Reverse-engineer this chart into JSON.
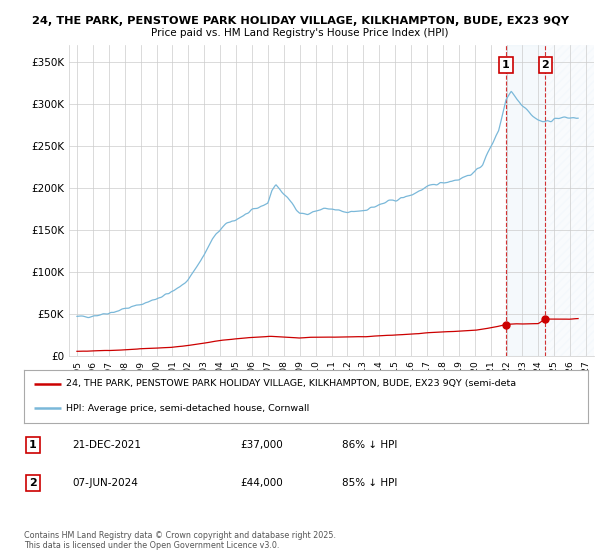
{
  "title_line1": "24, THE PARK, PENSTOWE PARK HOLIDAY VILLAGE, KILKHAMPTON, BUDE, EX23 9QY",
  "title_line2": "Price paid vs. HM Land Registry's House Price Index (HPI)",
  "background_color": "#ffffff",
  "grid_color": "#cccccc",
  "hpi_color": "#7ab8d9",
  "price_color": "#cc0000",
  "shade_color": "#daeaf7",
  "sale1_date_num": 2021.97,
  "sale2_date_num": 2024.44,
  "sale1_price": 37000,
  "sale2_price": 44000,
  "legend_line1": "24, THE PARK, PENSTOWE PARK HOLIDAY VILLAGE, KILKHAMPTON, BUDE, EX23 9QY (semi-deta",
  "legend_line2": "HPI: Average price, semi-detached house, Cornwall",
  "annotation1_date": "21-DEC-2021",
  "annotation1_price": "£37,000",
  "annotation1_hpi": "86% ↓ HPI",
  "annotation2_date": "07-JUN-2024",
  "annotation2_price": "£44,000",
  "annotation2_hpi": "85% ↓ HPI",
  "footer": "Contains HM Land Registry data © Crown copyright and database right 2025.\nThis data is licensed under the Open Government Licence v3.0.",
  "ylim_max": 370000,
  "yticks": [
    0,
    50000,
    100000,
    150000,
    200000,
    250000,
    300000,
    350000
  ],
  "ytick_labels": [
    "£0",
    "£50K",
    "£100K",
    "£150K",
    "£200K",
    "£250K",
    "£300K",
    "£350K"
  ],
  "xmin": 1994.5,
  "xmax": 2027.5
}
